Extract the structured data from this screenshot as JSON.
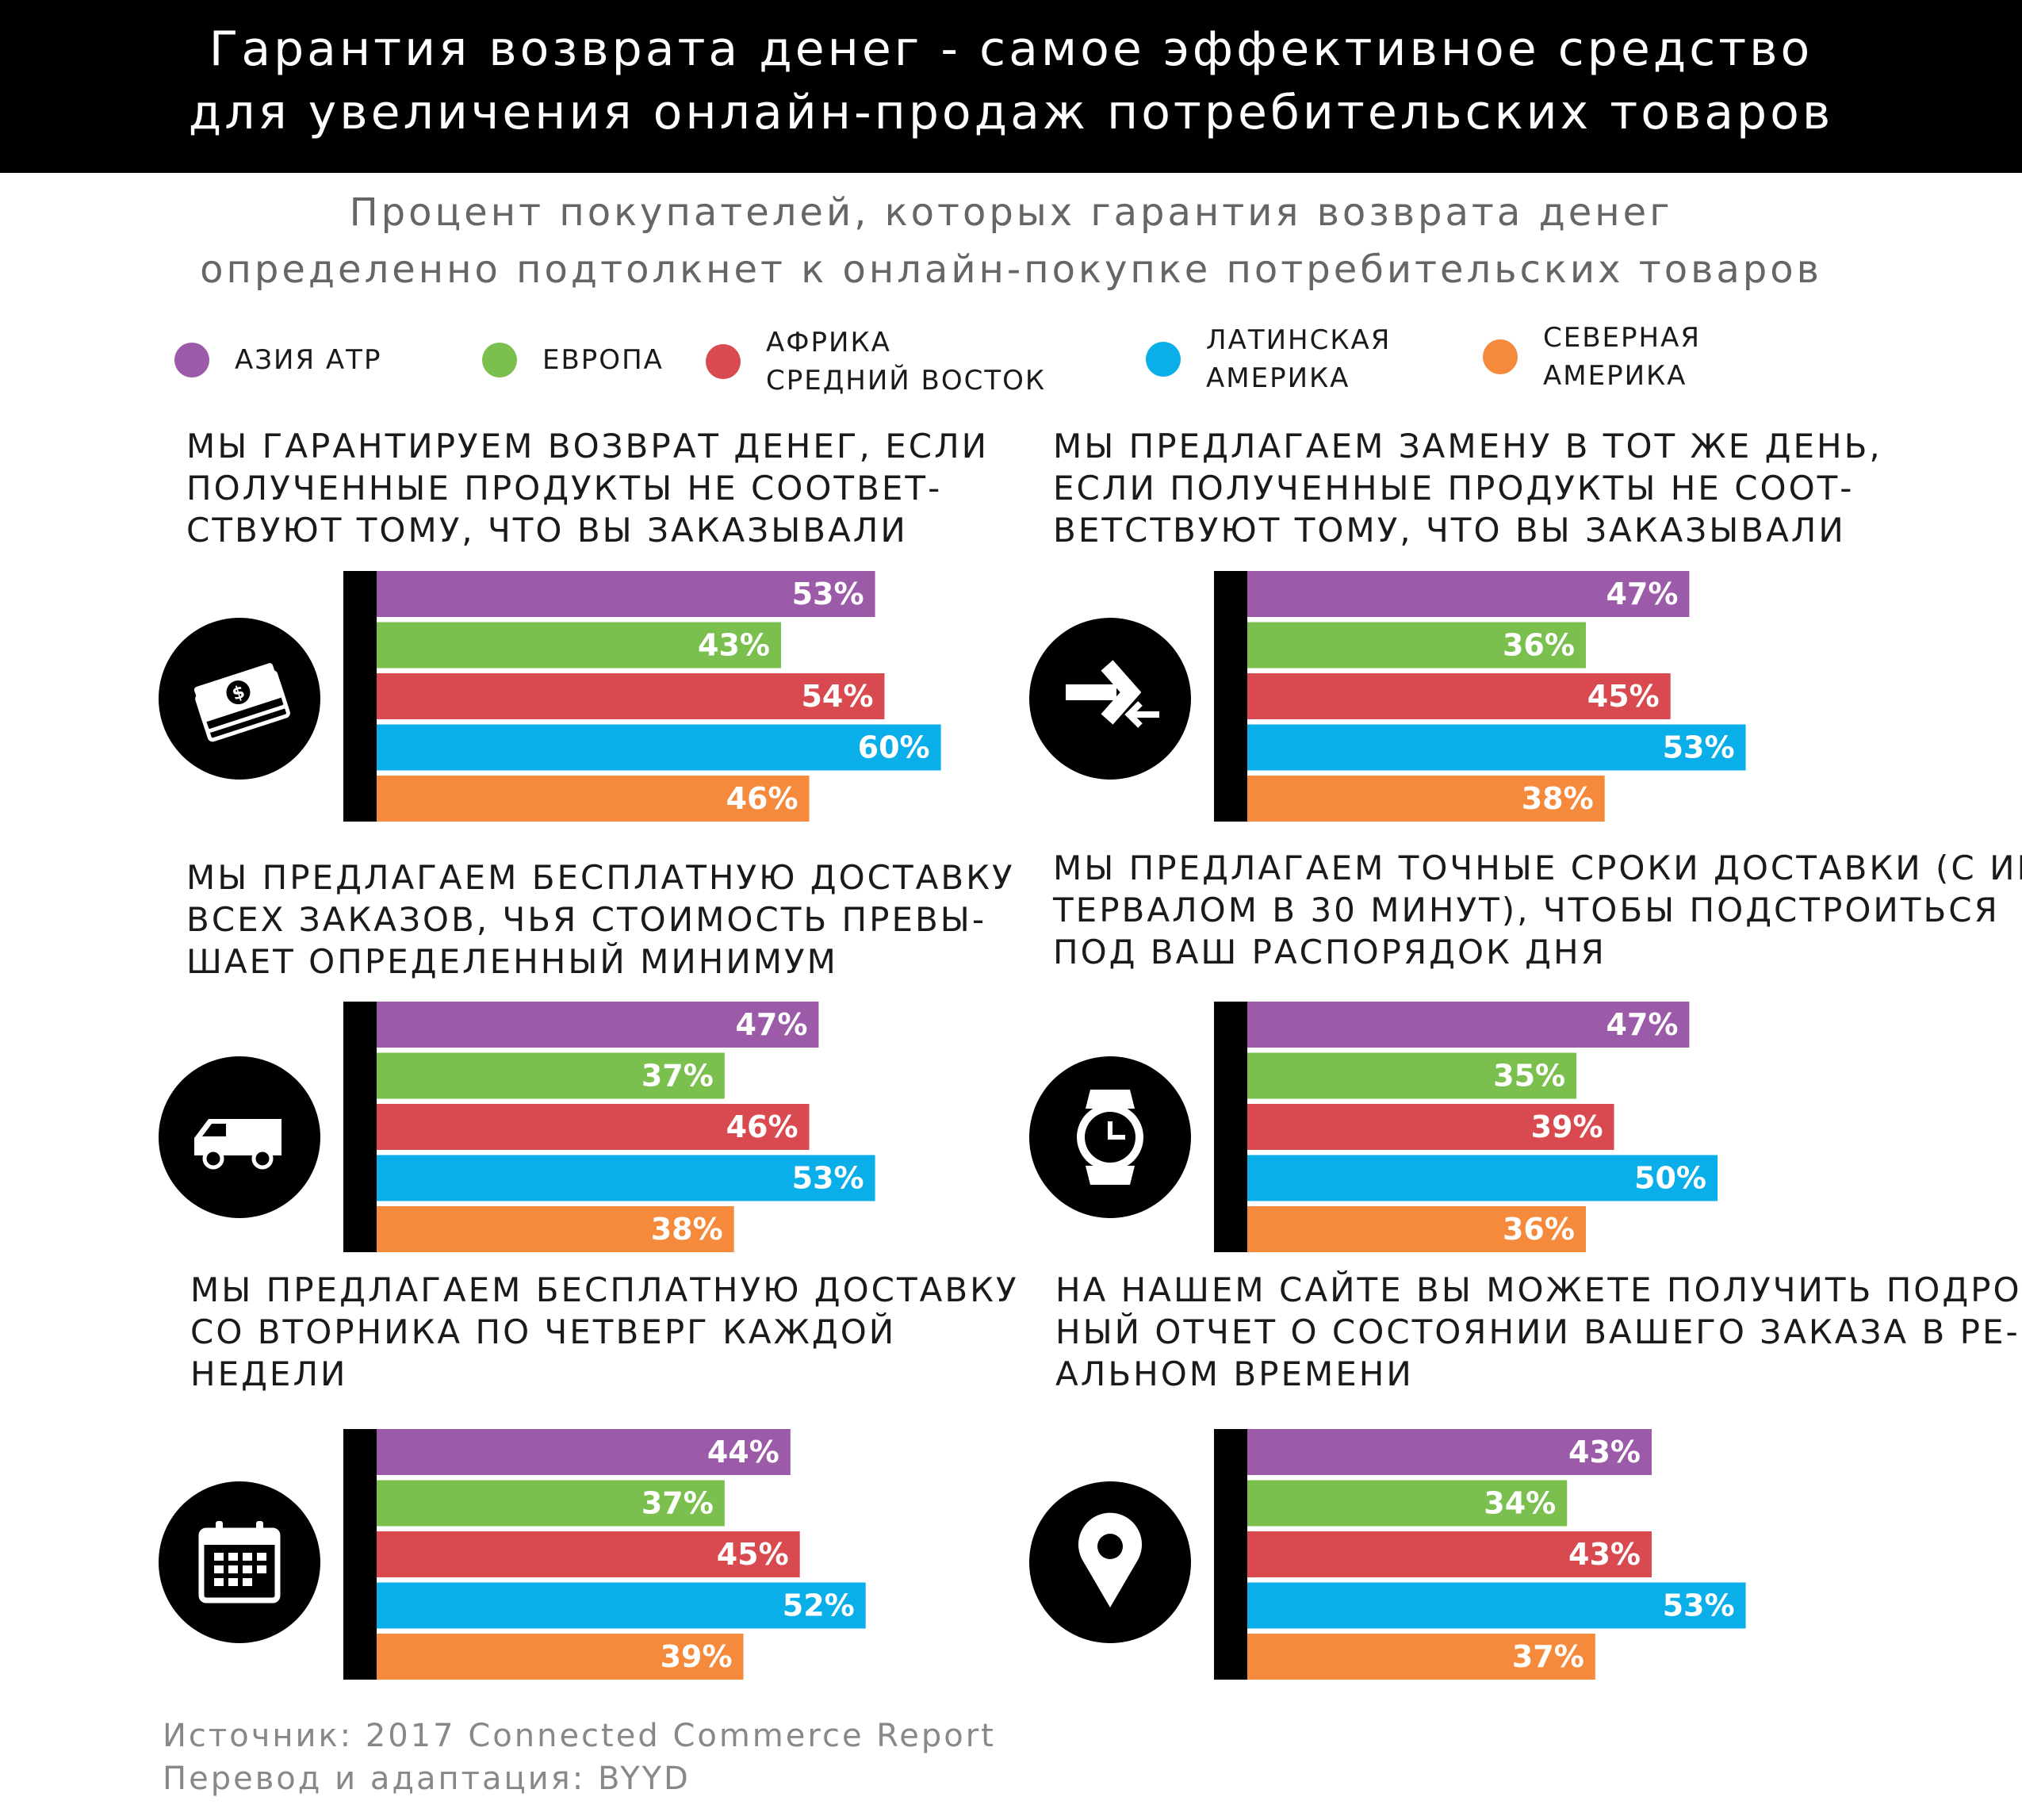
{
  "header": {
    "title_line1": "Гарантия возврата денег - самое эффективное средство",
    "title_line2": "для увеличения онлайн-продаж потребительских товаров"
  },
  "subtitle": {
    "line1": "Процент покупателей, которых гарантия возврата денег",
    "line2": "определенно подтолкнет к онлайн-покупке потребительских товаров"
  },
  "legend": [
    {
      "line1": "Азия АТР",
      "line2": "",
      "color": "#9c5ba8"
    },
    {
      "line1": "Европа",
      "line2": "",
      "color": "#7bc04f"
    },
    {
      "line1": "Африка",
      "line2": "Средний восток",
      "color": "#d84a50"
    },
    {
      "line1": "Латинская",
      "line2": "Америка",
      "color": "#0aaee8"
    },
    {
      "line1": "Северная",
      "line2": "Америка",
      "color": "#f58a3c"
    }
  ],
  "footer": {
    "line1": "Источник: 2017 Connected Commerce Report",
    "line2": "Перевод и адаптация: BYYD"
  },
  "chart_data": [
    {
      "type": "bar",
      "title": [
        "Мы гарантируем возврат денег, если",
        "полученные продукты не соответ-",
        "ствуют тому, что вы заказывали"
      ],
      "icon": "money-icon",
      "categories": [
        "Азия АТР",
        "Европа",
        "Африка Средний восток",
        "Латинская Америка",
        "Северная Америка"
      ],
      "values": [
        53,
        43,
        54,
        60,
        46
      ],
      "labels": [
        "53%",
        "43%",
        "54%",
        "60%",
        "46%"
      ]
    },
    {
      "type": "bar",
      "title": [
        "Мы предлагаем замену в тот же день,",
        "если полученные продукты не соот-",
        "ветствуют тому, что вы заказывали"
      ],
      "icon": "exchange-arrows-icon",
      "categories": [
        "Азия АТР",
        "Европа",
        "Африка Средний восток",
        "Латинская Америка",
        "Северная Америка"
      ],
      "values": [
        47,
        36,
        45,
        53,
        38
      ],
      "labels": [
        "47%",
        "36%",
        "45%",
        "53%",
        "38%"
      ]
    },
    {
      "type": "bar",
      "title": [
        "Мы предлагаем бесплатную доставку",
        "всех заказов, чья стоимость превы-",
        "шает определенный минимум"
      ],
      "icon": "delivery-van-icon",
      "categories": [
        "Азия АТР",
        "Европа",
        "Африка Средний восток",
        "Латинская Америка",
        "Северная Америка"
      ],
      "values": [
        47,
        37,
        46,
        53,
        38
      ],
      "labels": [
        "47%",
        "37%",
        "46%",
        "53%",
        "38%"
      ]
    },
    {
      "type": "bar",
      "title": [
        "Мы предлагаем точные сроки доставки (с ин-",
        "тервалом в 30 минут), чтобы подстроиться",
        "под ваш распорядок дня"
      ],
      "icon": "wristwatch-icon",
      "categories": [
        "Азия АТР",
        "Европа",
        "Африка Средний восток",
        "Латинская Америка",
        "Северная Америка"
      ],
      "values": [
        47,
        35,
        39,
        50,
        36
      ],
      "labels": [
        "47%",
        "35%",
        "39%",
        "50%",
        "36%"
      ]
    },
    {
      "type": "bar",
      "title": [
        "Мы предлагаем бесплатную доставку",
        "со вторника по четверг каждой",
        "недели"
      ],
      "icon": "calendar-icon",
      "categories": [
        "Азия АТР",
        "Европа",
        "Африка Средний восток",
        "Латинская Америка",
        "Северная Америка"
      ],
      "values": [
        44,
        37,
        45,
        52,
        39
      ],
      "labels": [
        "44%",
        "37%",
        "45%",
        "52%",
        "39%"
      ]
    },
    {
      "type": "bar",
      "title": [
        "На нашем сайте вы можете получить подроб-",
        "ный отчет о состоянии вашего заказа в ре-",
        "альном времени"
      ],
      "icon": "location-pin-icon",
      "categories": [
        "Азия АТР",
        "Европа",
        "Африка Средний восток",
        "Латинская Америка",
        "Северная Америка"
      ],
      "values": [
        43,
        34,
        43,
        53,
        37
      ],
      "labels": [
        "43%",
        "34%",
        "43%",
        "53%",
        "37%"
      ]
    }
  ]
}
